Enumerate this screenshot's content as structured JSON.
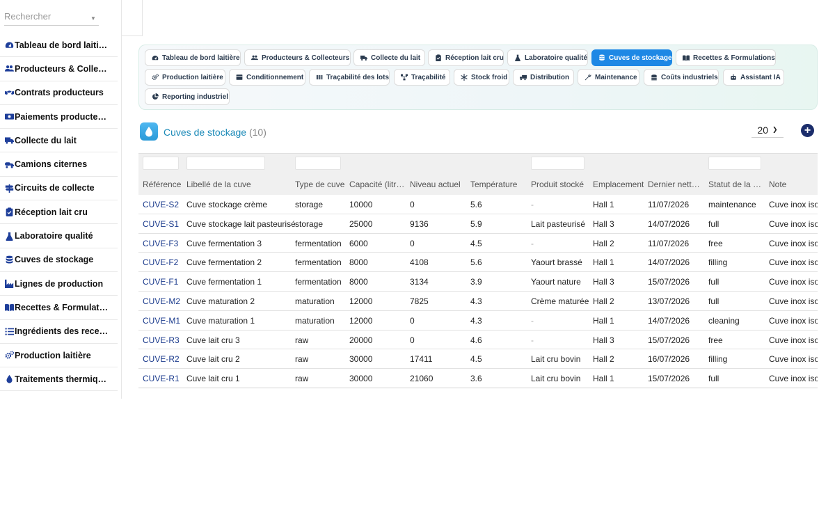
{
  "search": {
    "placeholder": "Rechercher"
  },
  "sidebar": {
    "items": [
      {
        "label": "Tableau de bord laitière",
        "icon": "gauge-icon"
      },
      {
        "label": "Producteurs & Collecteurs",
        "icon": "users-icon"
      },
      {
        "label": "Contrats producteurs",
        "icon": "handshake-icon"
      },
      {
        "label": "Paiements producteurs",
        "icon": "banknote-icon"
      },
      {
        "label": "Collecte du lait",
        "icon": "truck-icon"
      },
      {
        "label": "Camions citernes",
        "icon": "tanker-truck-icon"
      },
      {
        "label": "Circuits de collecte",
        "icon": "signpost-icon"
      },
      {
        "label": "Réception lait cru",
        "icon": "clipboard-icon"
      },
      {
        "label": "Laboratoire qualité",
        "icon": "flask-icon"
      },
      {
        "label": "Cuves de stockage",
        "icon": "database-icon"
      },
      {
        "label": "Lignes de production",
        "icon": "industry-icon"
      },
      {
        "label": "Recettes & Formulations",
        "icon": "book-icon"
      },
      {
        "label": "Ingrédients des recettes",
        "icon": "list-icon"
      },
      {
        "label": "Production laitière",
        "icon": "gears-icon"
      },
      {
        "label": "Traitements thermiques",
        "icon": "flame-drop-icon"
      }
    ]
  },
  "modules": {
    "tabs": [
      {
        "label": "Tableau de bord laitière",
        "icon": "gauge-icon",
        "active": false
      },
      {
        "label": "Producteurs & Collecteurs",
        "icon": "users-icon",
        "active": false
      },
      {
        "label": "Collecte du lait",
        "icon": "truck-icon",
        "active": false
      },
      {
        "label": "Réception lait cru",
        "icon": "clipboard-icon",
        "active": false
      },
      {
        "label": "Laboratoire qualité",
        "icon": "flask-icon",
        "active": false
      },
      {
        "label": "Cuves de stockage",
        "icon": "database-icon",
        "active": true
      },
      {
        "label": "Recettes & Formulations",
        "icon": "book-icon",
        "active": false
      },
      {
        "label": "Production laitière",
        "icon": "gears-icon",
        "active": false
      },
      {
        "label": "Conditionnement",
        "icon": "box-icon",
        "active": false
      },
      {
        "label": "Traçabilité des lots",
        "icon": "barcode-icon",
        "active": false
      },
      {
        "label": "Traçabilité",
        "icon": "sitemap-icon",
        "active": false
      },
      {
        "label": "Stock froid",
        "icon": "snowflake-icon",
        "active": false
      },
      {
        "label": "Distribution",
        "icon": "delivery-icon",
        "active": false
      },
      {
        "label": "Maintenance",
        "icon": "wrench-icon",
        "active": false
      },
      {
        "label": "Coûts industriels",
        "icon": "coins-icon",
        "active": false
      },
      {
        "label": "Assistant IA",
        "icon": "robot-icon",
        "active": false
      },
      {
        "label": "Reporting industriel",
        "icon": "pie-chart-icon",
        "active": false
      }
    ]
  },
  "page": {
    "title": "Cuves de stockage",
    "count": "(10)",
    "per_page": "20",
    "icon": "water-drop-icon"
  },
  "table": {
    "columns": [
      "Référence",
      "Libellé de la cuve",
      "Type de cuve",
      "Capacité (litres)",
      "Niveau actuel",
      "Température",
      "Produit stocké",
      "Emplacement",
      "Dernier nettoyage",
      "Statut de la cuve",
      "Note"
    ],
    "rows": [
      [
        "CUVE-S2",
        "Cuve stockage crème",
        "storage",
        "10000",
        "0",
        "5.6",
        "-",
        "Hall 1",
        "11/07/2026",
        "maintenance",
        "Cuve inox isotherme"
      ],
      [
        "CUVE-S1",
        "Cuve stockage lait pasteurisé",
        "storage",
        "25000",
        "9136",
        "5.9",
        "Lait pasteurisé",
        "Hall 3",
        "14/07/2026",
        "full",
        "Cuve inox isotherme"
      ],
      [
        "CUVE-F3",
        "Cuve fermentation 3",
        "fermentation",
        "6000",
        "0",
        "4.5",
        "-",
        "Hall 2",
        "11/07/2026",
        "free",
        "Cuve inox isotherme"
      ],
      [
        "CUVE-F2",
        "Cuve fermentation 2",
        "fermentation",
        "8000",
        "4108",
        "5.6",
        "Yaourt brassé",
        "Hall 1",
        "14/07/2026",
        "filling",
        "Cuve inox isotherme"
      ],
      [
        "CUVE-F1",
        "Cuve fermentation 1",
        "fermentation",
        "8000",
        "3134",
        "3.9",
        "Yaourt nature",
        "Hall 3",
        "15/07/2026",
        "full",
        "Cuve inox isotherme"
      ],
      [
        "CUVE-M2",
        "Cuve maturation 2",
        "maturation",
        "12000",
        "7825",
        "4.3",
        "Crème maturée",
        "Hall 2",
        "13/07/2026",
        "full",
        "Cuve inox isotherme"
      ],
      [
        "CUVE-M1",
        "Cuve maturation 1",
        "maturation",
        "12000",
        "0",
        "4.3",
        "-",
        "Hall 1",
        "14/07/2026",
        "cleaning",
        "Cuve inox isotherme"
      ],
      [
        "CUVE-R3",
        "Cuve lait cru 3",
        "raw",
        "20000",
        "0",
        "4.6",
        "-",
        "Hall 3",
        "15/07/2026",
        "free",
        "Cuve inox isotherme"
      ],
      [
        "CUVE-R2",
        "Cuve lait cru 2",
        "raw",
        "30000",
        "17411",
        "4.5",
        "Lait cru bovin",
        "Hall 2",
        "16/07/2026",
        "filling",
        "Cuve inox isotherme"
      ],
      [
        "CUVE-R1",
        "Cuve lait cru 1",
        "raw",
        "30000",
        "21060",
        "3.6",
        "Lait cru bovin",
        "Hall 1",
        "15/07/2026",
        "full",
        "Cuve inox isotherme"
      ]
    ]
  },
  "colors": {
    "accent": "#1e88e5",
    "title": "#1b8ab8",
    "link": "#1a3a8c",
    "add_button": "#1b2d6b"
  }
}
